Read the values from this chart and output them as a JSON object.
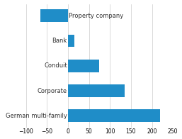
{
  "categories": [
    "German multi-family",
    "Corporate",
    "Conduit",
    "Bank",
    "Property company"
  ],
  "values": [
    220,
    135,
    75,
    15,
    -65
  ],
  "bar_color": "#1f8dc8",
  "background_color": "#ffffff",
  "xlim": [
    -100,
    250
  ],
  "xticks": [
    -100,
    -50,
    0,
    50,
    100,
    150,
    200,
    250
  ],
  "grid_color": "#cccccc",
  "label_fontsize": 6.0,
  "tick_fontsize": 5.5,
  "bar_height": 0.5
}
